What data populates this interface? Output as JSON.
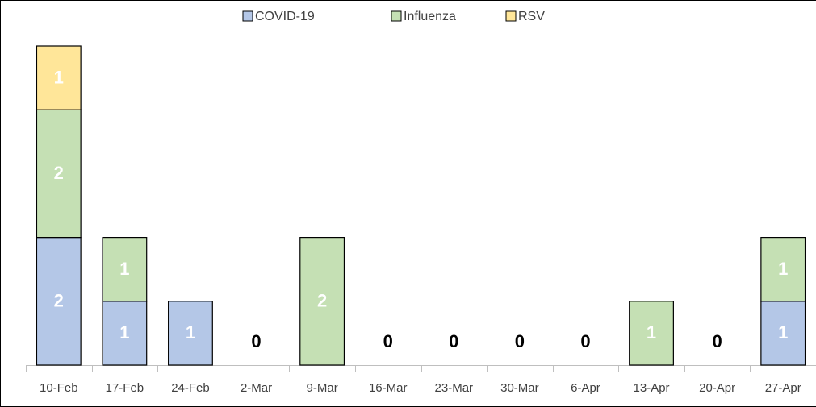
{
  "chart_data": {
    "type": "stacked_bar",
    "categories": [
      "10-Feb",
      "17-Feb",
      "24-Feb",
      "2-Mar",
      "9-Mar",
      "16-Mar",
      "23-Mar",
      "30-Mar",
      "6-Apr",
      "13-Apr",
      "20-Apr",
      "27-Apr"
    ],
    "series": [
      {
        "name": "COVID-19",
        "color": "#b4c7e7",
        "values": [
          2,
          1,
          1,
          0,
          null,
          0,
          0,
          0,
          0,
          null,
          0,
          1
        ]
      },
      {
        "name": "Influenza",
        "color": "#c5e0b4",
        "values": [
          2,
          1,
          null,
          null,
          2,
          null,
          null,
          null,
          null,
          1,
          null,
          1
        ]
      },
      {
        "name": "RSV",
        "color": "#ffe699",
        "values": [
          1,
          null,
          null,
          null,
          null,
          null,
          null,
          null,
          null,
          null,
          null,
          null
        ]
      }
    ],
    "ylim": [
      0,
      5
    ],
    "legend": "top"
  }
}
